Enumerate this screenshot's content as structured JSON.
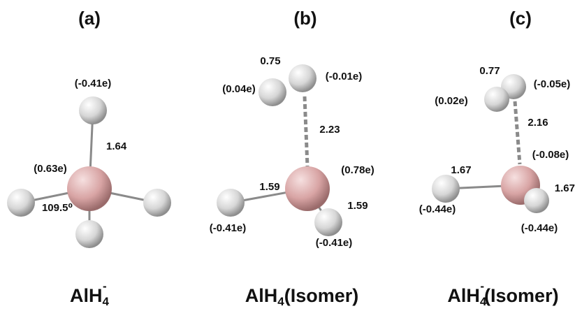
{
  "panels": [
    {
      "label": "(a)",
      "caption": {
        "main": "AlH",
        "sub": "4",
        "sup": "-"
      },
      "annotations": [
        "(-0.41e)",
        "1.64",
        "(0.63e)",
        "109.5⁰"
      ]
    },
    {
      "label": "(b)",
      "caption": {
        "main": "AlH",
        "sub": "4",
        "rest": "(Isomer)"
      },
      "annotations": [
        "0.75",
        "(0.04e)",
        "(-0.01e)",
        "2.23",
        "(0.78e)",
        "1.59",
        "1.59",
        "(-0.41e)",
        "(-0.41e)"
      ]
    },
    {
      "label": "(c)",
      "caption": {
        "main": "AlH",
        "sub": "4",
        "sup": "-",
        "rest": "(Isomer)"
      },
      "annotations": [
        "0.77",
        "(0.02e)",
        "(-0.05e)",
        "2.16",
        "(-0.08e)",
        "1.67",
        "1.67",
        "(-0.44e)",
        "(-0.44e)"
      ]
    }
  ]
}
